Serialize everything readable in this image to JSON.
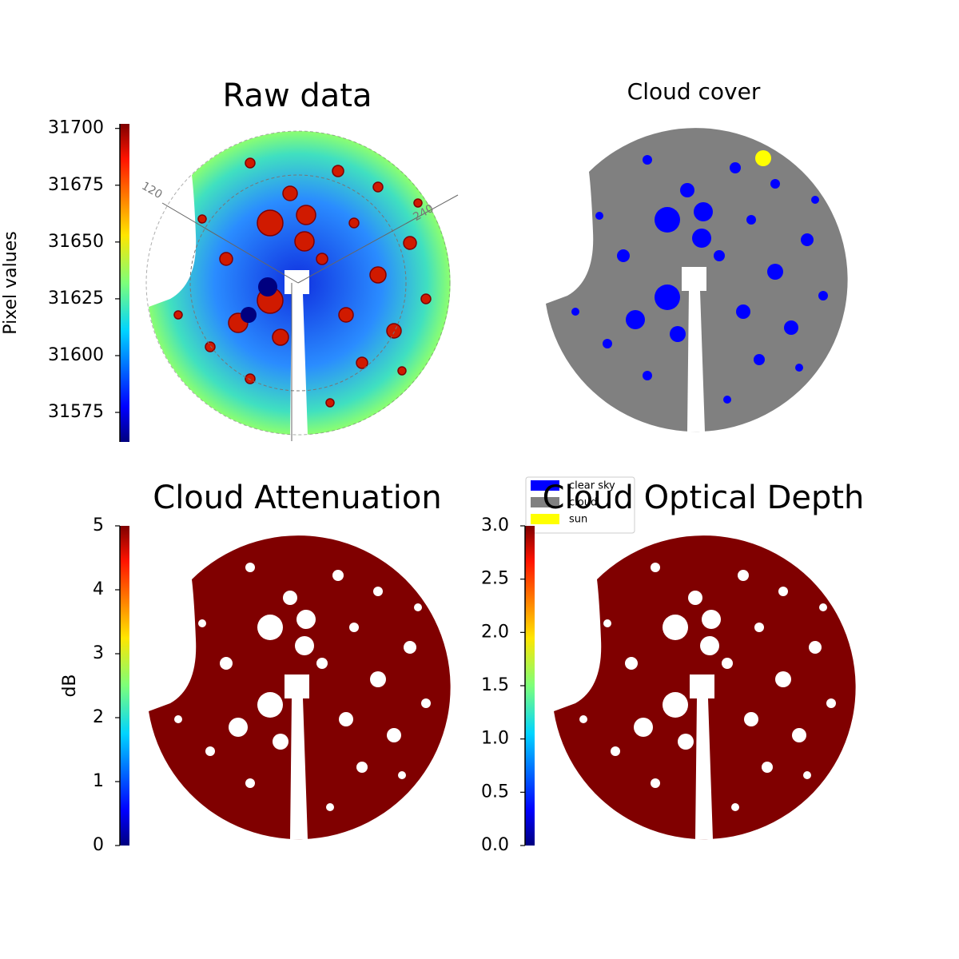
{
  "chart_data": [
    {
      "type": "image",
      "title": "Raw data",
      "annotations": [
        "120",
        "240"
      ],
      "colorbar": {
        "label": "Pixel values",
        "colormap": "jet",
        "lim": [
          31562,
          31702
        ],
        "ticks": [
          31575,
          31600,
          31625,
          31650,
          31675,
          31700
        ]
      }
    },
    {
      "type": "image",
      "title": "Cloud cover",
      "legend": [
        {
          "name": "clear sky",
          "color": "#0000ff"
        },
        {
          "name": "cloud",
          "color": "#808080"
        },
        {
          "name": "sun",
          "color": "#ffff00"
        }
      ]
    },
    {
      "type": "image",
      "title": "Cloud Attenuation",
      "colorbar": {
        "label": "dB",
        "colormap": "jet",
        "lim": [
          0,
          5
        ],
        "ticks": [
          0,
          1,
          2,
          3,
          4,
          5
        ]
      }
    },
    {
      "type": "image",
      "title": "Cloud Optical Depth",
      "colorbar": {
        "colormap": "jet",
        "lim": [
          0,
          3
        ],
        "ticks": [
          {
            "value": 0,
            "label": "0.0"
          },
          {
            "value": 0.5,
            "label": "0.5"
          },
          {
            "value": 1,
            "label": "1.0"
          },
          {
            "value": 1.5,
            "label": "1.5"
          },
          {
            "value": 2,
            "label": "2.0"
          },
          {
            "value": 2.5,
            "label": "2.5"
          },
          {
            "value": 3,
            "label": "3.0"
          }
        ]
      }
    }
  ]
}
